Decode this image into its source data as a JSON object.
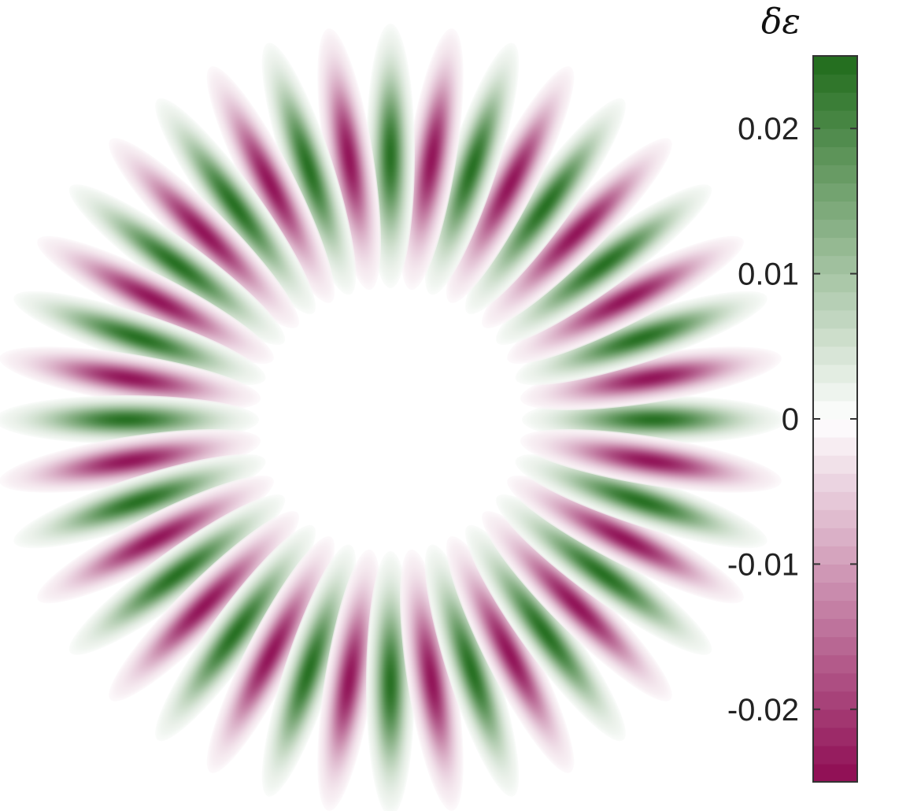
{
  "chart_data": {
    "type": "heatmap",
    "title": "",
    "xlabel": "",
    "ylabel": "",
    "description_of_field": "",
    "n_lobes": 40,
    "lobe_amplitude": 0.024,
    "lobe_sign_at_angle_0": "positive",
    "colorbar": {
      "label": "δε",
      "range": [
        -0.025,
        0.025
      ],
      "ticks": [
        0.02,
        0.01,
        0,
        -0.01,
        -0.02
      ],
      "tick_labels": [
        "0.02",
        "0.01",
        "0",
        "-0.01",
        "-0.02"
      ],
      "levels": 40,
      "colors": {
        "positive_max": "#1f6b1a",
        "zero": "#ffffff",
        "negative_min": "#8e0b52"
      }
    },
    "grid": false,
    "axes_visible": false
  }
}
